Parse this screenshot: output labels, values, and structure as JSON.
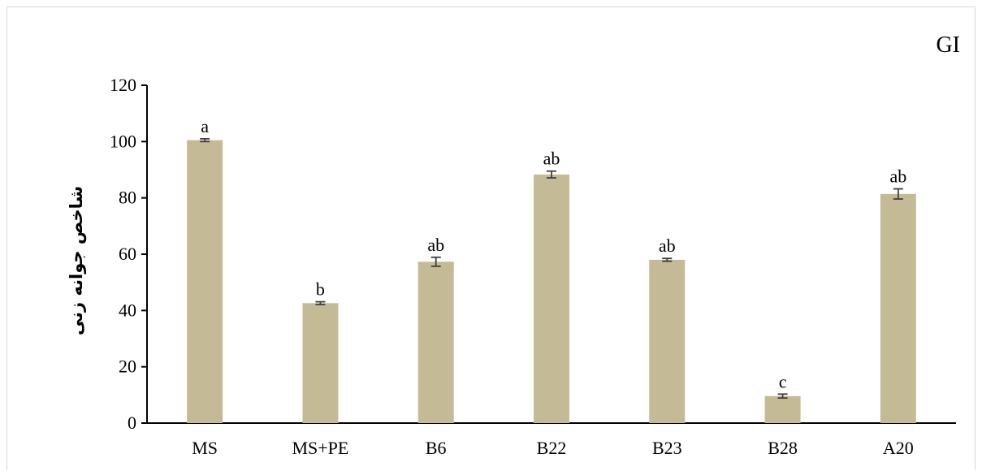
{
  "chart_data": {
    "type": "bar",
    "panel_label": "GI",
    "ylabel": "شاخص جوانه زنی",
    "xlabel": "",
    "ylim": [
      0,
      120
    ],
    "yticks": [
      0,
      20,
      40,
      60,
      80,
      100,
      120
    ],
    "categories": [
      "MS",
      "MS+PE",
      "B6",
      "B22",
      "B23",
      "B28",
      "A20"
    ],
    "values": [
      100.5,
      42.6,
      57.3,
      88.3,
      58.0,
      9.6,
      81.4
    ],
    "errors": [
      0.5,
      0.5,
      1.6,
      1.2,
      0.5,
      0.7,
      1.8
    ],
    "significance_letters": [
      "a",
      "b",
      "ab",
      "ab",
      "ab",
      "c",
      "ab"
    ],
    "bar_color": "#c4bb96",
    "error_bar_color": "#404040",
    "grid": false,
    "legend": "none"
  }
}
